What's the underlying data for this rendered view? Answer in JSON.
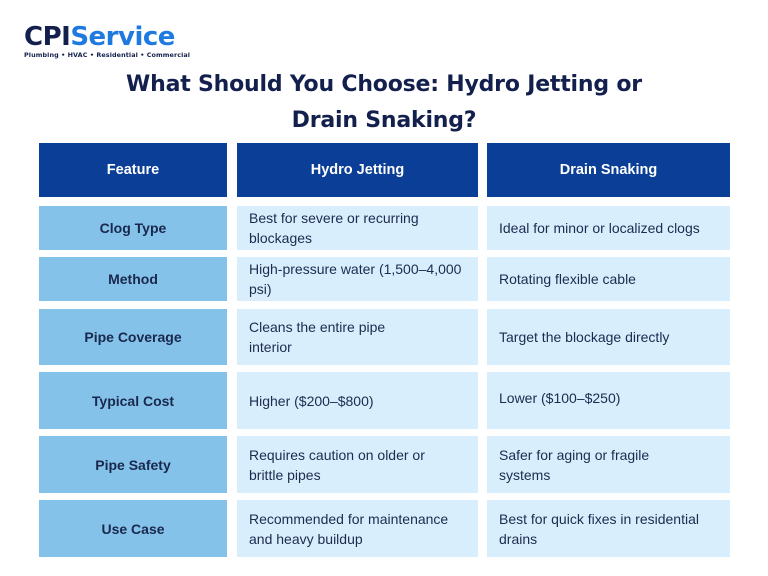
{
  "logo": {
    "cpi": "CPI",
    "service": "Service",
    "tagline": "Plumbing • HVAC • Residential • Commercial"
  },
  "title_line1": "What Should You Choose: Hydro Jetting or",
  "title_line2": "Drain Snaking?",
  "headers": [
    "Feature",
    "Hydro Jetting",
    "Drain Snaking"
  ],
  "rows": [
    {
      "feature": "Clog Type",
      "hydro": "Best for severe or recurring blockages",
      "snake": "Ideal for minor or localized clogs"
    },
    {
      "feature": "Method",
      "hydro": "High-pressure water (1,500–4,000 psi)",
      "snake": "Rotating flexible cable"
    },
    {
      "feature": "Pipe Coverage",
      "hydro": "Cleans the entire pipe interior",
      "snake": "Target the blockage directly"
    },
    {
      "feature": "Typical Cost",
      "hydro": "Higher ($200–$800)",
      "snake": "Lower ($100–$250)"
    },
    {
      "feature": "Pipe Safety",
      "hydro": "Requires caution on older or brittle pipes",
      "snake": "Safer for aging or fragile systems"
    },
    {
      "feature": "Use Case",
      "hydro": "Recommended for maintenance and heavy buildup",
      "snake": "Best for quick fixes in residential drains"
    }
  ],
  "colors": {
    "header_bg": "#0b3e97",
    "feature_bg": "#85c2ea",
    "value_bg": "#d8eefc",
    "title": "#13204d",
    "brand_blue": "#1f7ae0"
  }
}
